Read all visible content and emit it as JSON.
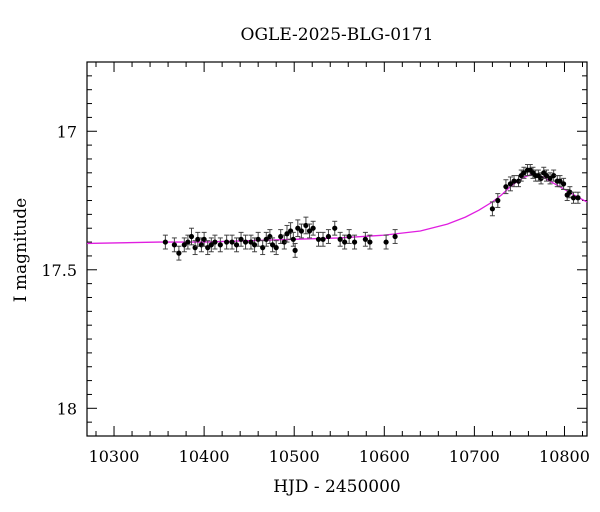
{
  "chart_data": {
    "type": "scatter",
    "title": "OGLE-2025-BLG-0171",
    "xlabel": "HJD - 2450000",
    "ylabel": "I magnitude",
    "xlim": [
      10270,
      10825
    ],
    "ylim": [
      18.1,
      16.75
    ],
    "y_inverted": true,
    "x_ticks": [
      10300,
      10400,
      10500,
      10600,
      10700,
      10800
    ],
    "y_ticks": [
      17,
      17.5,
      18
    ],
    "grid": false,
    "colors": {
      "points": "#000000",
      "model": "#e01ee0",
      "axes": "#000000"
    },
    "series": [
      {
        "kind": "points_with_errorbars",
        "points": [
          {
            "x": 10357,
            "y": 17.4,
            "e": 0.025
          },
          {
            "x": 10367,
            "y": 17.41,
            "e": 0.025
          },
          {
            "x": 10372,
            "y": 17.44,
            "e": 0.025
          },
          {
            "x": 10378,
            "y": 17.41,
            "e": 0.025
          },
          {
            "x": 10382,
            "y": 17.4,
            "e": 0.025
          },
          {
            "x": 10386,
            "y": 17.38,
            "e": 0.03
          },
          {
            "x": 10390,
            "y": 17.42,
            "e": 0.025
          },
          {
            "x": 10393,
            "y": 17.39,
            "e": 0.025
          },
          {
            "x": 10397,
            "y": 17.41,
            "e": 0.025
          },
          {
            "x": 10400,
            "y": 17.39,
            "e": 0.025
          },
          {
            "x": 10404,
            "y": 17.42,
            "e": 0.025
          },
          {
            "x": 10408,
            "y": 17.41,
            "e": 0.025
          },
          {
            "x": 10412,
            "y": 17.4,
            "e": 0.025
          },
          {
            "x": 10418,
            "y": 17.41,
            "e": 0.025
          },
          {
            "x": 10425,
            "y": 17.4,
            "e": 0.025
          },
          {
            "x": 10431,
            "y": 17.4,
            "e": 0.025
          },
          {
            "x": 10436,
            "y": 17.41,
            "e": 0.025
          },
          {
            "x": 10441,
            "y": 17.39,
            "e": 0.025
          },
          {
            "x": 10446,
            "y": 17.4,
            "e": 0.025
          },
          {
            "x": 10452,
            "y": 17.4,
            "e": 0.025
          },
          {
            "x": 10456,
            "y": 17.41,
            "e": 0.025
          },
          {
            "x": 10460,
            "y": 17.39,
            "e": 0.025
          },
          {
            "x": 10465,
            "y": 17.42,
            "e": 0.025
          },
          {
            "x": 10469,
            "y": 17.39,
            "e": 0.025
          },
          {
            "x": 10473,
            "y": 17.38,
            "e": 0.025
          },
          {
            "x": 10476,
            "y": 17.41,
            "e": 0.025
          },
          {
            "x": 10480,
            "y": 17.42,
            "e": 0.025
          },
          {
            "x": 10485,
            "y": 17.38,
            "e": 0.025
          },
          {
            "x": 10489,
            "y": 17.4,
            "e": 0.025
          },
          {
            "x": 10492,
            "y": 17.37,
            "e": 0.03
          },
          {
            "x": 10496,
            "y": 17.36,
            "e": 0.03
          },
          {
            "x": 10499,
            "y": 17.39,
            "e": 0.025
          },
          {
            "x": 10501,
            "y": 17.43,
            "e": 0.025
          },
          {
            "x": 10504,
            "y": 17.35,
            "e": 0.03
          },
          {
            "x": 10508,
            "y": 17.36,
            "e": 0.025
          },
          {
            "x": 10513,
            "y": 17.34,
            "e": 0.03
          },
          {
            "x": 10517,
            "y": 17.36,
            "e": 0.025
          },
          {
            "x": 10521,
            "y": 17.35,
            "e": 0.025
          },
          {
            "x": 10527,
            "y": 17.39,
            "e": 0.025
          },
          {
            "x": 10532,
            "y": 17.39,
            "e": 0.025
          },
          {
            "x": 10538,
            "y": 17.38,
            "e": 0.025
          },
          {
            "x": 10545,
            "y": 17.35,
            "e": 0.025
          },
          {
            "x": 10551,
            "y": 17.39,
            "e": 0.025
          },
          {
            "x": 10556,
            "y": 17.4,
            "e": 0.025
          },
          {
            "x": 10561,
            "y": 17.38,
            "e": 0.025
          },
          {
            "x": 10567,
            "y": 17.4,
            "e": 0.025
          },
          {
            "x": 10579,
            "y": 17.39,
            "e": 0.025
          },
          {
            "x": 10584,
            "y": 17.4,
            "e": 0.025
          },
          {
            "x": 10602,
            "y": 17.4,
            "e": 0.025
          },
          {
            "x": 10612,
            "y": 17.38,
            "e": 0.025
          },
          {
            "x": 10720,
            "y": 17.28,
            "e": 0.025
          },
          {
            "x": 10726,
            "y": 17.25,
            "e": 0.025
          },
          {
            "x": 10735,
            "y": 17.2,
            "e": 0.025
          },
          {
            "x": 10740,
            "y": 17.19,
            "e": 0.025
          },
          {
            "x": 10744,
            "y": 17.18,
            "e": 0.02
          },
          {
            "x": 10749,
            "y": 17.18,
            "e": 0.02
          },
          {
            "x": 10752,
            "y": 17.16,
            "e": 0.02
          },
          {
            "x": 10755,
            "y": 17.15,
            "e": 0.02
          },
          {
            "x": 10759,
            "y": 17.14,
            "e": 0.02
          },
          {
            "x": 10762,
            "y": 17.14,
            "e": 0.02
          },
          {
            "x": 10765,
            "y": 17.15,
            "e": 0.02
          },
          {
            "x": 10768,
            "y": 17.16,
            "e": 0.02
          },
          {
            "x": 10771,
            "y": 17.16,
            "e": 0.02
          },
          {
            "x": 10774,
            "y": 17.17,
            "e": 0.02
          },
          {
            "x": 10777,
            "y": 17.15,
            "e": 0.02
          },
          {
            "x": 10780,
            "y": 17.16,
            "e": 0.02
          },
          {
            "x": 10784,
            "y": 17.17,
            "e": 0.02
          },
          {
            "x": 10788,
            "y": 17.16,
            "e": 0.02
          },
          {
            "x": 10792,
            "y": 17.18,
            "e": 0.02
          },
          {
            "x": 10795,
            "y": 17.18,
            "e": 0.02
          },
          {
            "x": 10799,
            "y": 17.19,
            "e": 0.02
          },
          {
            "x": 10803,
            "y": 17.23,
            "e": 0.02
          },
          {
            "x": 10806,
            "y": 17.22,
            "e": 0.02
          },
          {
            "x": 10810,
            "y": 17.24,
            "e": 0.02
          },
          {
            "x": 10815,
            "y": 17.24,
            "e": 0.02
          }
        ]
      },
      {
        "kind": "model_curve",
        "baseline": 17.405,
        "peak_x": 10766,
        "peak_y": 17.155,
        "points": [
          {
            "x": 10270,
            "y": 17.405
          },
          {
            "x": 10350,
            "y": 17.4
          },
          {
            "x": 10400,
            "y": 17.4
          },
          {
            "x": 10450,
            "y": 17.395
          },
          {
            "x": 10500,
            "y": 17.39
          },
          {
            "x": 10550,
            "y": 17.385
          },
          {
            "x": 10600,
            "y": 17.375
          },
          {
            "x": 10640,
            "y": 17.36
          },
          {
            "x": 10670,
            "y": 17.335
          },
          {
            "x": 10690,
            "y": 17.31
          },
          {
            "x": 10705,
            "y": 17.285
          },
          {
            "x": 10720,
            "y": 17.255
          },
          {
            "x": 10730,
            "y": 17.23
          },
          {
            "x": 10740,
            "y": 17.2
          },
          {
            "x": 10748,
            "y": 17.18
          },
          {
            "x": 10756,
            "y": 17.165
          },
          {
            "x": 10762,
            "y": 17.157
          },
          {
            "x": 10766,
            "y": 17.155
          },
          {
            "x": 10770,
            "y": 17.157
          },
          {
            "x": 10776,
            "y": 17.165
          },
          {
            "x": 10784,
            "y": 17.18
          },
          {
            "x": 10792,
            "y": 17.195
          },
          {
            "x": 10800,
            "y": 17.21
          },
          {
            "x": 10808,
            "y": 17.225
          },
          {
            "x": 10816,
            "y": 17.24
          },
          {
            "x": 10825,
            "y": 17.255
          }
        ]
      }
    ]
  }
}
